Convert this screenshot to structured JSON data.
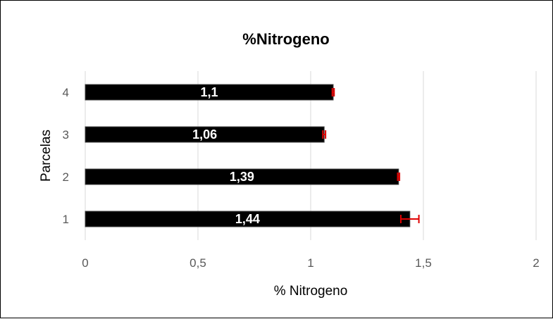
{
  "chart_data": {
    "type": "bar",
    "orientation": "horizontal",
    "title": "%Nitrogeno",
    "xlabel": "% Nitrogeno",
    "ylabel": "Parcelas",
    "categories": [
      "1",
      "2",
      "3",
      "4"
    ],
    "values": [
      1.44,
      1.39,
      1.06,
      1.1
    ],
    "data_labels": [
      "1,44",
      "1,39",
      "1,06",
      "1,1"
    ],
    "error": [
      0.04,
      0.004,
      0.006,
      0.004
    ],
    "xlim": [
      0,
      2
    ],
    "xticks": [
      0,
      0.5,
      1,
      1.5,
      2
    ],
    "xtick_labels": [
      "0",
      "0,5",
      "1",
      "1,5",
      "2"
    ],
    "grid": "vertical",
    "legend": "none",
    "colors": {
      "bar": "#000000",
      "error_bar": "#e00000",
      "grid": "#d9d9d9",
      "tick_text": "#595959"
    }
  }
}
